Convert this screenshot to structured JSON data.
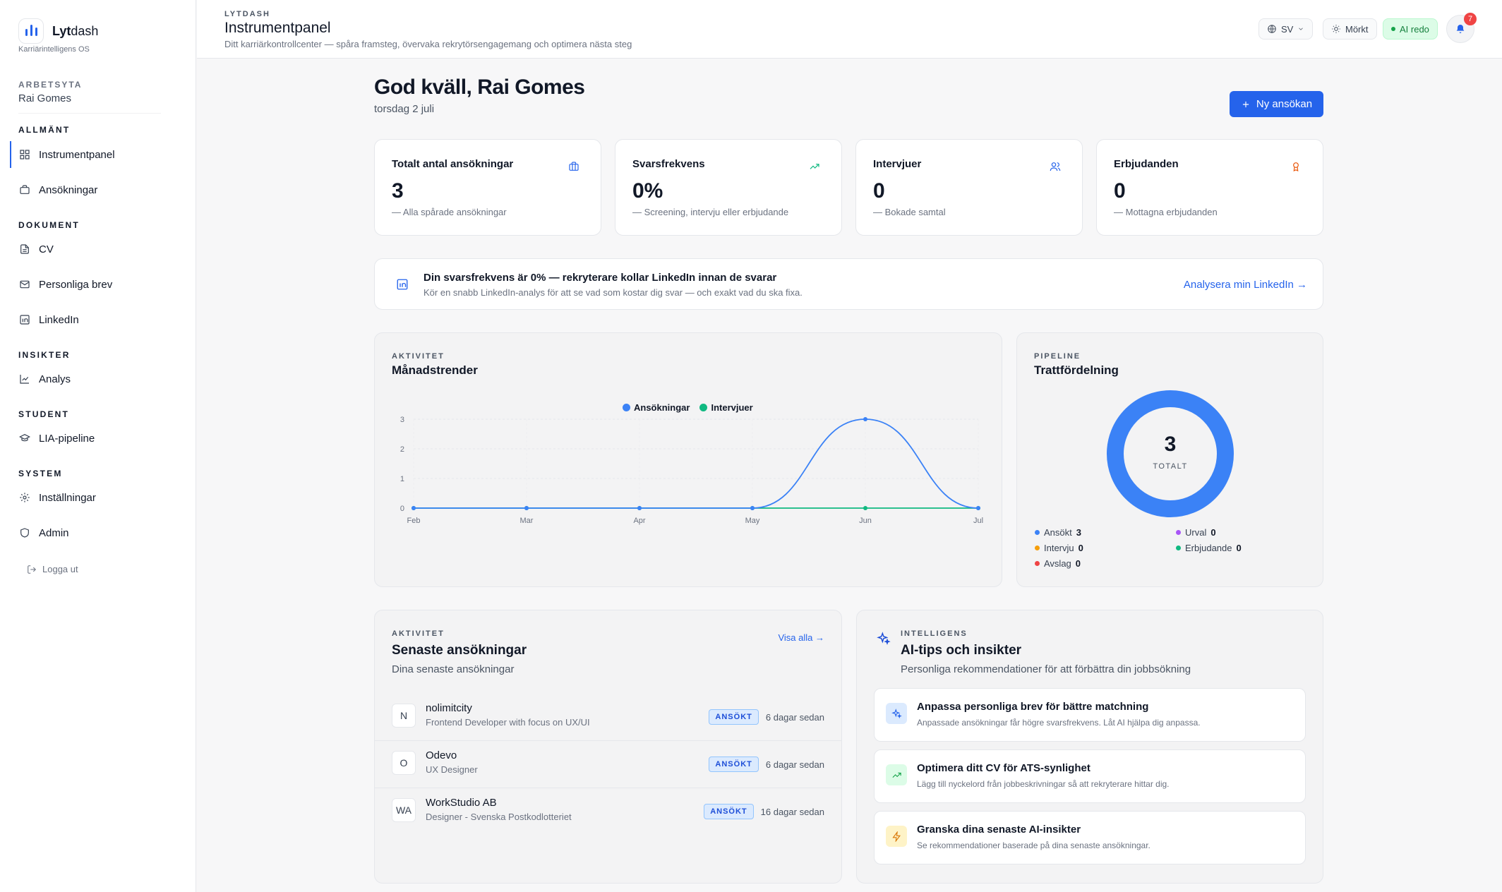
{
  "brand": {
    "name_bold": "Lyt",
    "name_rest": "dash",
    "subtitle": "Karriärintelligens OS"
  },
  "workspace": {
    "label": "ARBETSYTA",
    "name": "Rai Gomes"
  },
  "sidebar": {
    "sections": [
      {
        "label": "ALLMÄNT"
      },
      {
        "label": "DOKUMENT"
      },
      {
        "label": "INSIKTER"
      },
      {
        "label": "STUDENT"
      },
      {
        "label": "SYSTEM"
      }
    ],
    "items": [
      {
        "label": "Instrumentpanel",
        "icon": "grid-icon",
        "active": true
      },
      {
        "label": "Ansökningar",
        "icon": "briefcase-icon"
      },
      {
        "label": "CV",
        "icon": "file-icon"
      },
      {
        "label": "Personliga brev",
        "icon": "mail-icon"
      },
      {
        "label": "LinkedIn",
        "icon": "linkedin-icon"
      },
      {
        "label": "Analys",
        "icon": "chart-icon"
      },
      {
        "label": "LIA-pipeline",
        "icon": "graduation-icon"
      },
      {
        "label": "Inställningar",
        "icon": "gear-icon"
      },
      {
        "label": "Admin",
        "icon": "shield-icon"
      }
    ],
    "logout": "Logga ut"
  },
  "header": {
    "eyebrow": "LYTDASH",
    "title": "Instrumentpanel",
    "subtitle": "Ditt karriärkontrollcenter — spåra framsteg, övervaka rekrytörsengagemang och optimera nästa steg",
    "lang": "SV",
    "theme": "Mörkt",
    "ai_status": "AI redo",
    "notifications": "7"
  },
  "main": {
    "greeting": "God kväll, Rai Gomes",
    "date": "torsdag 2 juli",
    "new_button": "Ny ansökan"
  },
  "stats": [
    {
      "title": "Totalt antal ansökningar",
      "value": "3",
      "note": "— Alla spårade ansökningar",
      "icon": "briefcase-icon",
      "color": "#2563eb"
    },
    {
      "title": "Svarsfrekvens",
      "value": "0%",
      "note": "— Screening, intervju eller erbjudande",
      "icon": "trending-up-icon",
      "color": "#10b981"
    },
    {
      "title": "Intervjuer",
      "value": "0",
      "note": "— Bokade samtal",
      "icon": "users-icon",
      "color": "#2563eb"
    },
    {
      "title": "Erbjudanden",
      "value": "0",
      "note": "— Mottagna erbjudanden",
      "icon": "award-icon",
      "color": "#ea580c"
    }
  ],
  "linkedin_banner": {
    "title": "Din svarsfrekvens är 0% — rekryterare kollar LinkedIn innan de svarar",
    "subtitle": "Kör en snabb LinkedIn-analys för att se vad som kostar dig svar — och exakt vad du ska fixa.",
    "link": "Analysera min LinkedIn →"
  },
  "trend": {
    "eyebrow": "AKTIVITET",
    "title": "Månadstrender"
  },
  "chart_data": [
    {
      "type": "line",
      "categories": [
        "Feb",
        "Mar",
        "Apr",
        "May",
        "Jun",
        "Jul"
      ],
      "series": [
        {
          "name": "Ansökningar",
          "values": [
            0,
            0,
            0,
            0,
            3,
            0
          ],
          "color": "#3b82f6"
        },
        {
          "name": "Intervjuer",
          "values": [
            0,
            0,
            0,
            0,
            0,
            0
          ],
          "color": "#10b981"
        }
      ],
      "yticks": [
        "0",
        "1",
        "2",
        "3"
      ],
      "ylim": [
        0,
        3
      ],
      "grid": true,
      "legend": "top-center"
    },
    {
      "type": "pie",
      "center_value": "3",
      "center_label": "TOTALT",
      "categories": [
        "Ansökt",
        "Urval",
        "Intervju",
        "Erbjudande",
        "Avslag"
      ],
      "values": [
        3,
        0,
        0,
        0,
        0
      ],
      "colors": [
        "#3b82f6",
        "#a855f7",
        "#f59e0b",
        "#10b981",
        "#ef4444"
      ],
      "counts": [
        "3",
        "0",
        "0",
        "0",
        "0"
      ]
    }
  ],
  "funnel": {
    "eyebrow": "PIPELINE",
    "title": "Trattfördelning"
  },
  "recent": {
    "eyebrow": "AKTIVITET",
    "title": "Senaste ansökningar",
    "subtitle": "Dina senaste ansökningar",
    "view_all": "Visa alla →",
    "rows": [
      {
        "initials": "N",
        "company": "nolimitcity",
        "role": "Frontend Developer with focus on UX/UI",
        "status": "ANSÖKT",
        "ago": "6 dagar sedan"
      },
      {
        "initials": "O",
        "company": "Odevo",
        "role": "UX Designer",
        "status": "ANSÖKT",
        "ago": "6 dagar sedan"
      },
      {
        "initials": "WA",
        "company": "WorkStudio AB",
        "role": "Designer - Svenska Postkodlotteriet",
        "status": "ANSÖKT",
        "ago": "16 dagar sedan"
      }
    ]
  },
  "tips": {
    "eyebrow": "INTELLIGENS",
    "title": "AI-tips och insikter",
    "subtitle": "Personliga rekommendationer för att förbättra din jobbsökning",
    "items": [
      {
        "title": "Anpassa personliga brev för bättre matchning",
        "subtitle": "Anpassade ansökningar får högre svarsfrekvens. Låt AI hjälpa dig anpassa.",
        "icon": "sparkles-icon",
        "bg": "#dbeafe",
        "color": "#2563eb"
      },
      {
        "title": "Optimera ditt CV för ATS-synlighet",
        "subtitle": "Lägg till nyckelord från jobbeskrivningar så att rekryterare hittar dig.",
        "icon": "trending-up-icon",
        "bg": "#dcfce7",
        "color": "#16a34a"
      },
      {
        "title": "Granska dina senaste AI-insikter",
        "subtitle": "Se rekommendationer baserade på dina senaste ansökningar.",
        "icon": "zap-icon",
        "bg": "#fef3c7",
        "color": "#d97706"
      }
    ]
  }
}
